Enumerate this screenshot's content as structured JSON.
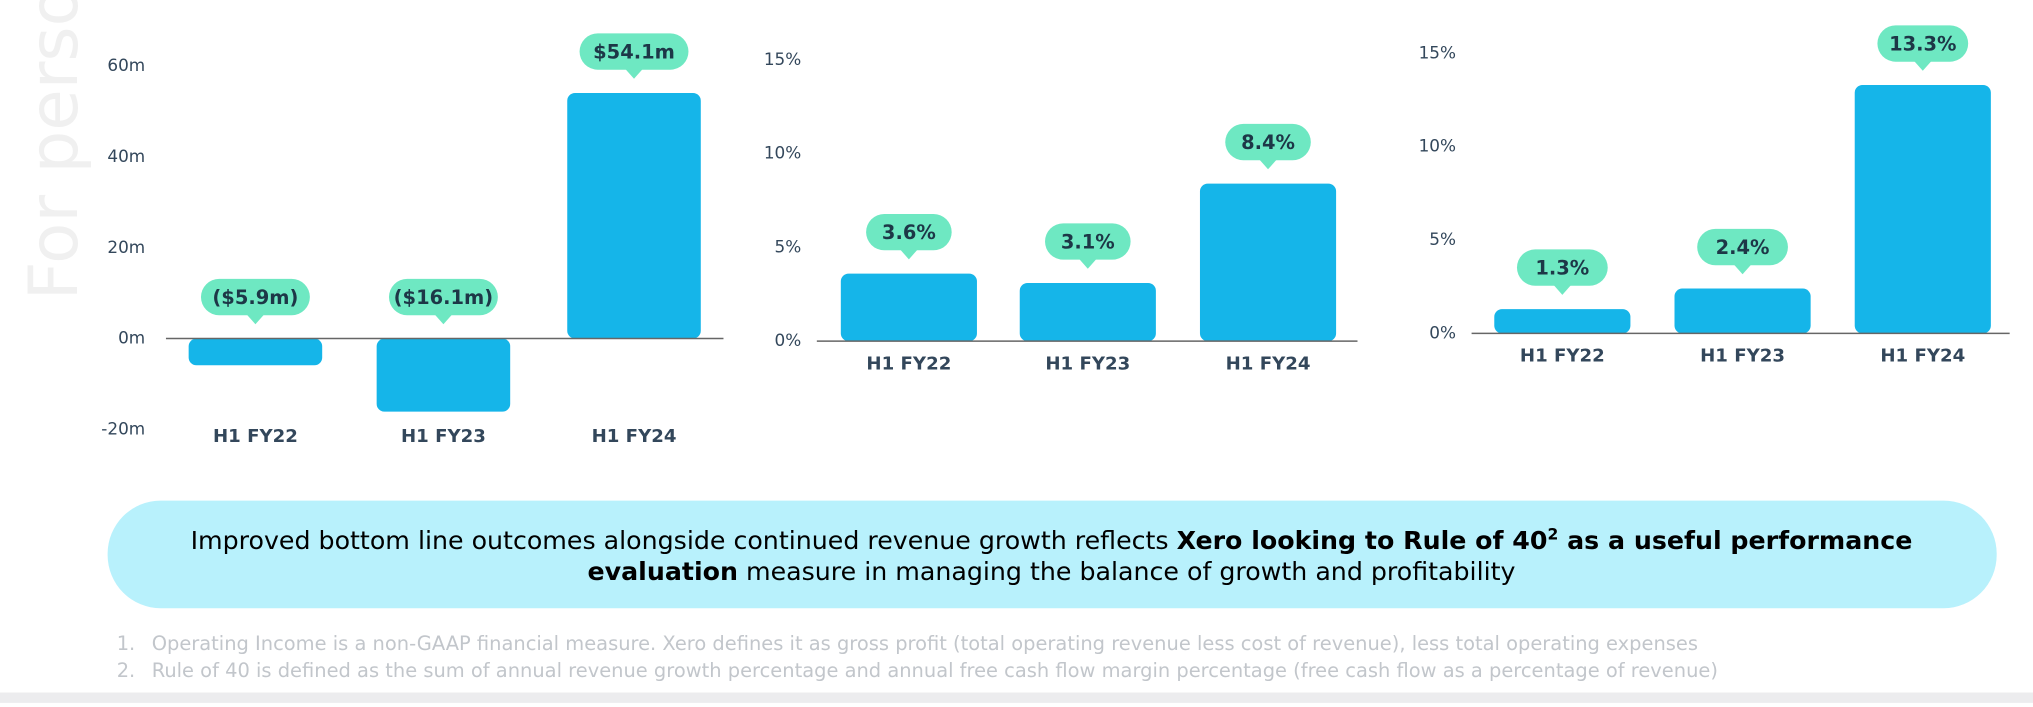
{
  "watermark": "For perso",
  "chart_data": [
    {
      "type": "bar",
      "categories": [
        "H1 FY22",
        "H1 FY23",
        "H1 FY24"
      ],
      "values": [
        -5.9,
        -16.1,
        54.1
      ],
      "value_labels": [
        "($5.9m)",
        "($16.1m)",
        "$54.1m"
      ],
      "color": "#15b5e9",
      "ylim": [
        -20,
        60
      ],
      "yticks": [
        {
          "value": -20,
          "label": "-20m"
        },
        {
          "value": 0,
          "label": "0m"
        },
        {
          "value": 20,
          "label": "20m"
        },
        {
          "value": 40,
          "label": "40m"
        },
        {
          "value": 60,
          "label": "60m"
        }
      ]
    },
    {
      "type": "bar",
      "categories": [
        "H1 FY22",
        "H1 FY23",
        "H1 FY24"
      ],
      "values": [
        3.6,
        3.1,
        8.4
      ],
      "value_labels": [
        "3.6%",
        "3.1%",
        "8.4%"
      ],
      "color": "#15b5e9",
      "ylim": [
        0,
        15
      ],
      "yticks": [
        {
          "value": 0,
          "label": "0%"
        },
        {
          "value": 5,
          "label": "5%"
        },
        {
          "value": 10,
          "label": "10%"
        },
        {
          "value": 15,
          "label": "15%"
        }
      ]
    },
    {
      "type": "bar",
      "categories": [
        "H1 FY22",
        "H1 FY23",
        "H1 FY24"
      ],
      "values": [
        1.3,
        2.4,
        13.3
      ],
      "value_labels": [
        "1.3%",
        "2.4%",
        "13.3%"
      ],
      "color": "#15b5e9",
      "ylim": [
        0,
        15
      ],
      "yticks": [
        {
          "value": 0,
          "label": "0%"
        },
        {
          "value": 5,
          "label": "5%"
        },
        {
          "value": 10,
          "label": "10%"
        },
        {
          "value": 15,
          "label": "15%"
        }
      ]
    }
  ],
  "banner": {
    "lines": [
      [
        "Improved bottom line outcomes alongside continued revenue growth reflects ",
        "Xero looking to Rule of 40",
        "2",
        " as a useful performance"
      ],
      [
        "evaluation",
        " measure in managing the balance of growth and profitability"
      ]
    ]
  },
  "footnotes": [
    {
      "number": "1.",
      "text": "Operating Income is a non-GAAP financial measure. Xero defines it as gross profit (total operating revenue less cost of revenue), less total operating expenses"
    },
    {
      "number": "2.",
      "text": "Rule of 40 is defined as the sum of annual revenue growth percentage and annual free cash flow margin percentage (free cash flow as a percentage of revenue)"
    }
  ]
}
